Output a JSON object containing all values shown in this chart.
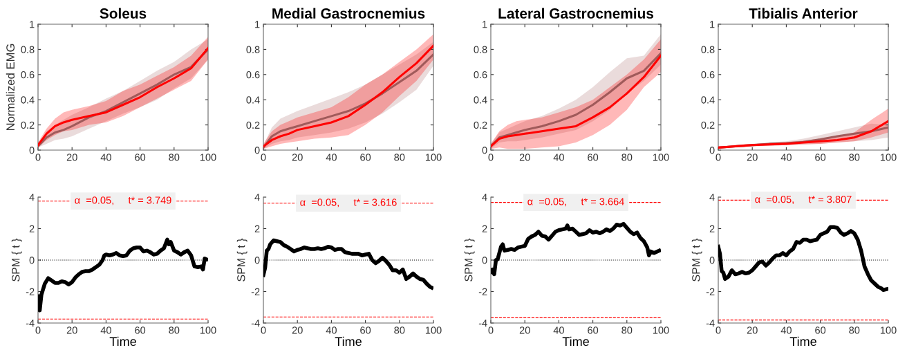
{
  "chart_data": [
    {
      "type": "line",
      "title": "Soleus",
      "ylabel": "Normalized EMG",
      "xlim": [
        0,
        100
      ],
      "xticks": [
        0,
        20,
        40,
        60,
        80,
        100
      ],
      "ylim": [
        0,
        1
      ],
      "yticks": [
        0,
        0.2,
        0.4,
        0.6,
        0.8,
        1
      ],
      "grid": false,
      "line_style": "solid",
      "marker": "none",
      "x": [
        0,
        5,
        10,
        15,
        20,
        30,
        40,
        50,
        60,
        70,
        80,
        90,
        100
      ],
      "series": [
        {
          "color": "#a05a5a",
          "values": [
            0.03,
            0.1,
            0.14,
            0.16,
            0.19,
            0.26,
            0.31,
            0.38,
            0.45,
            0.52,
            0.6,
            0.66,
            0.8
          ],
          "lower": [
            0.02,
            0.05,
            0.08,
            0.09,
            0.11,
            0.17,
            0.23,
            0.29,
            0.34,
            0.4,
            0.49,
            0.57,
            0.72
          ],
          "upper": [
            0.05,
            0.15,
            0.2,
            0.24,
            0.28,
            0.34,
            0.41,
            0.47,
            0.55,
            0.63,
            0.7,
            0.8,
            0.88
          ]
        },
        {
          "color": "#ff0000",
          "values": [
            0.04,
            0.13,
            0.19,
            0.22,
            0.24,
            0.27,
            0.3,
            0.36,
            0.42,
            0.5,
            0.57,
            0.65,
            0.81
          ],
          "lower": [
            0.02,
            0.08,
            0.12,
            0.15,
            0.16,
            0.2,
            0.22,
            0.27,
            0.34,
            0.41,
            0.48,
            0.55,
            0.72
          ],
          "upper": [
            0.06,
            0.17,
            0.25,
            0.3,
            0.32,
            0.35,
            0.39,
            0.47,
            0.52,
            0.59,
            0.66,
            0.75,
            0.9
          ]
        }
      ]
    },
    {
      "type": "line",
      "title": "Medial Gastrocnemius",
      "xlim": [
        0,
        100
      ],
      "xticks": [
        0,
        20,
        40,
        60,
        80,
        100
      ],
      "ylim": [
        0,
        1
      ],
      "yticks": [
        0,
        0.2,
        0.4,
        0.6,
        0.8,
        1
      ],
      "grid": false,
      "line_style": "solid",
      "marker": "none",
      "x": [
        0,
        5,
        10,
        15,
        20,
        30,
        40,
        50,
        60,
        70,
        80,
        90,
        100
      ],
      "series": [
        {
          "color": "#a05a5a",
          "values": [
            0.02,
            0.11,
            0.15,
            0.17,
            0.19,
            0.23,
            0.27,
            0.31,
            0.37,
            0.45,
            0.54,
            0.63,
            0.76
          ],
          "lower": [
            0.01,
            0.05,
            0.07,
            0.08,
            0.1,
            0.12,
            0.14,
            0.17,
            0.22,
            0.29,
            0.38,
            0.48,
            0.67
          ],
          "upper": [
            0.04,
            0.18,
            0.25,
            0.28,
            0.31,
            0.36,
            0.41,
            0.46,
            0.52,
            0.6,
            0.68,
            0.76,
            0.86
          ]
        },
        {
          "color": "#ff0000",
          "values": [
            0.03,
            0.08,
            0.11,
            0.13,
            0.16,
            0.19,
            0.22,
            0.27,
            0.36,
            0.46,
            0.58,
            0.69,
            0.83
          ],
          "lower": [
            0.01,
            0.03,
            0.05,
            0.06,
            0.07,
            0.09,
            0.1,
            0.12,
            0.2,
            0.3,
            0.43,
            0.55,
            0.72
          ],
          "upper": [
            0.05,
            0.15,
            0.2,
            0.23,
            0.26,
            0.3,
            0.34,
            0.42,
            0.52,
            0.6,
            0.7,
            0.8,
            0.92
          ]
        }
      ]
    },
    {
      "type": "line",
      "title": "Lateral Gastrocnemius",
      "xlim": [
        0,
        100
      ],
      "xticks": [
        0,
        20,
        40,
        60,
        80,
        100
      ],
      "ylim": [
        0,
        1
      ],
      "yticks": [
        0,
        0.2,
        0.4,
        0.6,
        0.8,
        1
      ],
      "grid": false,
      "line_style": "solid",
      "marker": "none",
      "x": [
        0,
        5,
        10,
        15,
        20,
        30,
        40,
        50,
        60,
        70,
        80,
        90,
        100
      ],
      "series": [
        {
          "color": "#a05a5a",
          "values": [
            0.03,
            0.1,
            0.12,
            0.14,
            0.16,
            0.19,
            0.23,
            0.28,
            0.36,
            0.46,
            0.57,
            0.63,
            0.77
          ],
          "lower": [
            0.01,
            0.06,
            0.07,
            0.07,
            0.08,
            0.1,
            0.13,
            0.16,
            0.23,
            0.32,
            0.45,
            0.55,
            0.68
          ],
          "upper": [
            0.05,
            0.14,
            0.17,
            0.2,
            0.23,
            0.27,
            0.33,
            0.4,
            0.5,
            0.62,
            0.73,
            0.75,
            0.92
          ]
        },
        {
          "color": "#ff0000",
          "values": [
            0.03,
            0.09,
            0.11,
            0.12,
            0.13,
            0.15,
            0.17,
            0.19,
            0.26,
            0.34,
            0.45,
            0.58,
            0.75
          ],
          "lower": [
            0.01,
            0.02,
            0.01,
            0.01,
            0.01,
            0.02,
            0.03,
            0.06,
            0.12,
            0.2,
            0.32,
            0.5,
            0.62
          ],
          "upper": [
            0.05,
            0.15,
            0.2,
            0.23,
            0.24,
            0.26,
            0.3,
            0.34,
            0.4,
            0.5,
            0.6,
            0.72,
            0.88
          ]
        }
      ]
    },
    {
      "type": "line",
      "title": "Tibialis Anterior",
      "xlim": [
        0,
        100
      ],
      "xticks": [
        0,
        20,
        40,
        60,
        80,
        100
      ],
      "ylim": [
        0,
        1
      ],
      "yticks": [
        0,
        0.2,
        0.4,
        0.6,
        0.8,
        1
      ],
      "grid": false,
      "line_style": "solid",
      "marker": "none",
      "x": [
        0,
        5,
        10,
        15,
        20,
        30,
        40,
        50,
        60,
        70,
        80,
        90,
        100
      ],
      "series": [
        {
          "color": "#a05a5a",
          "values": [
            0.02,
            0.025,
            0.03,
            0.035,
            0.04,
            0.05,
            0.055,
            0.065,
            0.085,
            0.11,
            0.13,
            0.15,
            0.18
          ],
          "lower": [
            0.015,
            0.02,
            0.02,
            0.025,
            0.03,
            0.035,
            0.04,
            0.045,
            0.05,
            0.06,
            0.07,
            0.08,
            0.1
          ],
          "upper": [
            0.03,
            0.035,
            0.04,
            0.045,
            0.05,
            0.06,
            0.07,
            0.09,
            0.12,
            0.15,
            0.18,
            0.21,
            0.2
          ]
        },
        {
          "color": "#ff0000",
          "values": [
            0.02,
            0.025,
            0.03,
            0.035,
            0.04,
            0.045,
            0.05,
            0.06,
            0.07,
            0.08,
            0.1,
            0.15,
            0.23
          ],
          "lower": [
            0.01,
            0.015,
            0.02,
            0.025,
            0.03,
            0.035,
            0.04,
            0.045,
            0.05,
            0.06,
            0.07,
            0.1,
            0.14
          ],
          "upper": [
            0.03,
            0.035,
            0.04,
            0.045,
            0.05,
            0.055,
            0.065,
            0.075,
            0.09,
            0.11,
            0.14,
            0.24,
            0.33
          ]
        }
      ]
    },
    {
      "type": "line",
      "xlabel": "Time",
      "ylabel": "SPM { t }",
      "xlim": [
        0,
        100
      ],
      "xticks": [
        0,
        20,
        40,
        60,
        80,
        100
      ],
      "ylim": [
        -4,
        4
      ],
      "yticks": [
        -4,
        -2,
        0,
        2,
        4
      ],
      "grid": false,
      "line_style": "solid",
      "marker": "none",
      "ref_lines": [
        {
          "axis": "y",
          "value": 3.749,
          "label": "α  =0.05,     t* = 3.749",
          "color": "#ff0000",
          "line_style": "dashed"
        },
        {
          "axis": "y",
          "value": -3.749,
          "color": "#ff0000",
          "line_style": "dashed"
        },
        {
          "axis": "y",
          "value": 0,
          "color": "#000000",
          "line_style": "dotted"
        }
      ],
      "series": [
        {
          "color": "#000000",
          "x": [
            0,
            1,
            2,
            4,
            6,
            8,
            10,
            12,
            14,
            16,
            18,
            20,
            22,
            24,
            26,
            28,
            30,
            32,
            34,
            36,
            38,
            39,
            40,
            42,
            44,
            46,
            48,
            50,
            52,
            54,
            56,
            58,
            60,
            62,
            64,
            66,
            68,
            70,
            72,
            74,
            76,
            77,
            78,
            80,
            82,
            84,
            86,
            88,
            90,
            92,
            94,
            96,
            97,
            98,
            99
          ],
          "values": [
            -2.3,
            -3.2,
            -2.2,
            -1.5,
            -1.15,
            -1.3,
            -1.45,
            -1.45,
            -1.35,
            -1.4,
            -1.55,
            -1.4,
            -1.1,
            -0.9,
            -0.75,
            -0.7,
            -0.7,
            -0.6,
            -0.45,
            -0.3,
            0.0,
            0.3,
            0.35,
            0.3,
            0.35,
            0.45,
            0.3,
            0.25,
            0.3,
            0.6,
            0.75,
            0.8,
            0.8,
            0.55,
            0.6,
            0.5,
            0.35,
            0.4,
            0.6,
            0.75,
            1.3,
            1.0,
            1.15,
            0.6,
            0.5,
            0.35,
            0.5,
            0.6,
            0.3,
            -0.4,
            -0.45,
            -0.4,
            -0.6,
            0.1,
            0.05
          ]
        }
      ]
    },
    {
      "type": "line",
      "xlabel": "Time",
      "ylabel": "SPM { t }",
      "xlim": [
        0,
        100
      ],
      "xticks": [
        0,
        20,
        40,
        60,
        80,
        100
      ],
      "ylim": [
        -4,
        4
      ],
      "yticks": [
        -4,
        -2,
        0,
        2,
        4
      ],
      "grid": false,
      "line_style": "solid",
      "marker": "none",
      "ref_lines": [
        {
          "axis": "y",
          "value": 3.616,
          "label": "α  =0.05,     t* = 3.616",
          "color": "#ff0000",
          "line_style": "dashed"
        },
        {
          "axis": "y",
          "value": -3.616,
          "color": "#ff0000",
          "line_style": "dashed"
        },
        {
          "axis": "y",
          "value": 0,
          "color": "#000000",
          "line_style": "dotted"
        }
      ],
      "series": [
        {
          "color": "#000000",
          "x": [
            0,
            1,
            2,
            3,
            4,
            6,
            8,
            10,
            12,
            14,
            16,
            18,
            20,
            22,
            24,
            26,
            28,
            30,
            32,
            34,
            36,
            38,
            40,
            42,
            44,
            46,
            48,
            50,
            52,
            54,
            56,
            58,
            60,
            62,
            64,
            66,
            68,
            70,
            72,
            74,
            76,
            78,
            80,
            82,
            84,
            86,
            88,
            90,
            92,
            94,
            96,
            98,
            99
          ],
          "values": [
            -0.95,
            -0.5,
            0.6,
            0.7,
            1.0,
            1.25,
            1.2,
            1.15,
            0.95,
            0.85,
            0.7,
            0.55,
            0.65,
            0.7,
            0.8,
            0.75,
            0.7,
            0.7,
            0.75,
            0.7,
            0.75,
            0.85,
            0.8,
            0.65,
            0.7,
            0.7,
            0.5,
            0.45,
            0.4,
            0.4,
            0.4,
            0.3,
            0.35,
            0.4,
            0.0,
            -0.2,
            -0.05,
            0.15,
            -0.05,
            -0.3,
            -0.65,
            -0.65,
            -0.8,
            -0.6,
            -1.2,
            -1.05,
            -0.85,
            -1.05,
            -1.2,
            -1.25,
            -1.5,
            -1.7,
            -1.75
          ]
        }
      ]
    },
    {
      "type": "line",
      "xlabel": "Time",
      "ylabel": "SPM { t }",
      "xlim": [
        0,
        100
      ],
      "xticks": [
        0,
        20,
        40,
        60,
        80,
        100
      ],
      "ylim": [
        -4,
        4
      ],
      "yticks": [
        -4,
        -2,
        0,
        2,
        4
      ],
      "grid": false,
      "line_style": "solid",
      "marker": "none",
      "ref_lines": [
        {
          "axis": "y",
          "value": 3.664,
          "label": "α  =0.05,     t* = 3.664",
          "color": "#ff0000",
          "line_style": "dashed"
        },
        {
          "axis": "y",
          "value": -3.664,
          "color": "#ff0000",
          "line_style": "dashed"
        },
        {
          "axis": "y",
          "value": 0,
          "color": "#000000",
          "line_style": "dotted"
        }
      ],
      "series": [
        {
          "color": "#000000",
          "x": [
            0,
            1,
            2,
            3,
            4,
            6,
            7,
            8,
            10,
            12,
            14,
            16,
            18,
            20,
            22,
            24,
            26,
            28,
            30,
            32,
            34,
            36,
            38,
            40,
            42,
            44,
            45,
            46,
            48,
            50,
            52,
            54,
            56,
            58,
            60,
            62,
            64,
            66,
            68,
            70,
            72,
            74,
            76,
            78,
            80,
            82,
            84,
            86,
            88,
            90,
            92,
            93,
            94,
            96,
            98,
            99
          ],
          "values": [
            -0.75,
            -0.6,
            -0.9,
            0.0,
            0.05,
            0.85,
            1.0,
            0.6,
            0.65,
            0.7,
            0.65,
            0.8,
            0.85,
            0.9,
            1.35,
            1.5,
            1.6,
            1.8,
            1.55,
            1.5,
            1.3,
            1.55,
            1.8,
            1.9,
            1.95,
            2.0,
            2.2,
            1.95,
            2.0,
            1.8,
            1.6,
            1.65,
            1.7,
            1.9,
            1.75,
            1.8,
            1.7,
            1.8,
            1.95,
            1.85,
            2.0,
            2.25,
            2.2,
            2.3,
            2.05,
            1.8,
            1.65,
            1.75,
            1.4,
            1.2,
            0.8,
            0.3,
            0.55,
            0.45,
            0.55,
            0.6
          ]
        }
      ]
    },
    {
      "type": "line",
      "xlabel": "Time",
      "ylabel": "SPM { t }",
      "xlim": [
        0,
        100
      ],
      "xticks": [
        0,
        20,
        40,
        60,
        80,
        100
      ],
      "ylim": [
        -4,
        4
      ],
      "yticks": [
        -4,
        -2,
        0,
        2,
        4
      ],
      "grid": false,
      "line_style": "solid",
      "marker": "none",
      "ref_lines": [
        {
          "axis": "y",
          "value": 3.807,
          "label": "α  =0.05,     t* = 3.807",
          "color": "#ff0000",
          "line_style": "dashed"
        },
        {
          "axis": "y",
          "value": -3.807,
          "color": "#ff0000",
          "line_style": "dashed"
        },
        {
          "axis": "y",
          "value": 0,
          "color": "#000000",
          "line_style": "dotted"
        }
      ],
      "series": [
        {
          "color": "#000000",
          "x": [
            0,
            1,
            2,
            3,
            4,
            6,
            8,
            10,
            12,
            14,
            16,
            18,
            20,
            22,
            24,
            26,
            28,
            30,
            32,
            34,
            36,
            38,
            40,
            42,
            44,
            46,
            48,
            50,
            52,
            54,
            56,
            58,
            60,
            62,
            64,
            66,
            68,
            70,
            72,
            74,
            76,
            78,
            80,
            82,
            84,
            86,
            88,
            90,
            92,
            94,
            96,
            97,
            99
          ],
          "values": [
            0.85,
            0.4,
            -0.7,
            -0.8,
            -1.2,
            -1.05,
            -0.65,
            -0.9,
            -0.85,
            -0.75,
            -0.85,
            -0.8,
            -0.65,
            -0.4,
            -0.15,
            -0.1,
            -0.35,
            -0.15,
            0.1,
            0.3,
            0.3,
            0.45,
            0.3,
            0.55,
            0.7,
            1.15,
            1.1,
            1.3,
            1.3,
            1.2,
            1.25,
            1.3,
            1.6,
            1.7,
            1.8,
            2.1,
            2.1,
            2.05,
            1.75,
            1.6,
            1.7,
            1.85,
            1.7,
            1.3,
            0.6,
            -0.4,
            -0.9,
            -1.3,
            -1.5,
            -1.7,
            -1.8,
            -1.9,
            -1.85
          ]
        }
      ]
    }
  ]
}
